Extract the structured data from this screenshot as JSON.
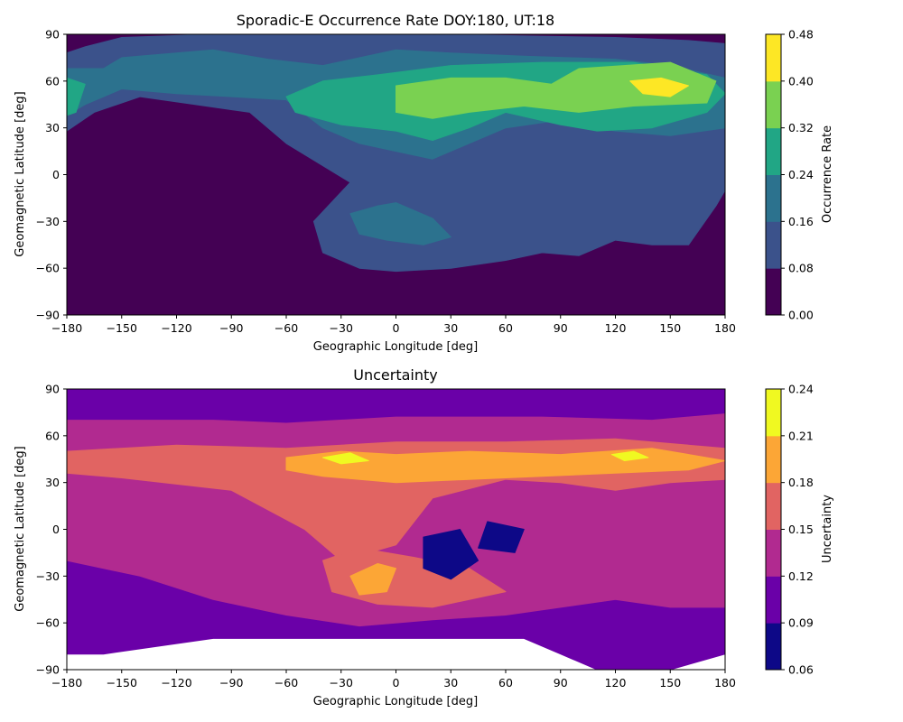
{
  "chart_data": [
    {
      "type": "heatmap",
      "subtype": "filled-contour",
      "title": "Sporadic-E Occurrence Rate  DOY:180, UT:18",
      "xlabel": "Geographic Longitude [deg]",
      "ylabel": "Geomagnetic Latitude [deg]",
      "xlim": [
        -180,
        180
      ],
      "ylim": [
        -90,
        90
      ],
      "xticks": [
        -180,
        -150,
        -120,
        -90,
        -60,
        -30,
        0,
        30,
        60,
        90,
        120,
        150,
        180
      ],
      "yticks": [
        -90,
        -60,
        -30,
        0,
        30,
        60,
        90
      ],
      "xtick_labels": [
        "−180",
        "−150",
        "−120",
        "−90",
        "−60",
        "−30",
        "0",
        "30",
        "60",
        "90",
        "120",
        "150",
        "180"
      ],
      "ytick_labels": [
        "−90",
        "−60",
        "−30",
        "0",
        "30",
        "60",
        "90"
      ],
      "colormap": "viridis",
      "colorbar": {
        "label": "Occurrence Rate",
        "levels": [
          0.0,
          0.08,
          0.16,
          0.24,
          0.32,
          0.4,
          0.48
        ],
        "tick_labels": [
          "0.00",
          "0.08",
          "0.16",
          "0.24",
          "0.32",
          "0.40",
          "0.48"
        ],
        "colors": [
          "#440154",
          "#3b528b",
          "#2c728e",
          "#21a685",
          "#7ad151",
          "#fde725"
        ]
      },
      "regions": [
        {
          "level_index": 1,
          "description": "0.08–0.16 band",
          "lon_lat": [
            [
              -180,
              78
            ],
            [
              -170,
              82
            ],
            [
              -150,
              88
            ],
            [
              -100,
              90
            ],
            [
              20,
              90
            ],
            [
              120,
              88
            ],
            [
              160,
              86
            ],
            [
              180,
              84
            ],
            [
              180,
              -10
            ],
            [
              175,
              -20
            ],
            [
              160,
              -45
            ],
            [
              140,
              -45
            ],
            [
              120,
              -42
            ],
            [
              100,
              -52
            ],
            [
              80,
              -50
            ],
            [
              60,
              -55
            ],
            [
              30,
              -60
            ],
            [
              0,
              -62
            ],
            [
              -20,
              -60
            ],
            [
              -40,
              -50
            ],
            [
              -45,
              -30
            ],
            [
              -25,
              -5
            ],
            [
              -60,
              20
            ],
            [
              -80,
              40
            ],
            [
              -110,
              45
            ],
            [
              -140,
              50
            ],
            [
              -165,
              40
            ],
            [
              -180,
              28
            ]
          ]
        },
        {
          "level_index": 2,
          "description": "0.16–0.24 band",
          "lon_lat": [
            [
              -180,
              68
            ],
            [
              -160,
              68
            ],
            [
              -150,
              75
            ],
            [
              -100,
              80
            ],
            [
              -70,
              74
            ],
            [
              -40,
              70
            ],
            [
              0,
              80
            ],
            [
              30,
              78
            ],
            [
              70,
              76
            ],
            [
              120,
              74
            ],
            [
              150,
              70
            ],
            [
              180,
              62
            ],
            [
              180,
              30
            ],
            [
              150,
              25
            ],
            [
              120,
              28
            ],
            [
              90,
              35
            ],
            [
              60,
              30
            ],
            [
              40,
              20
            ],
            [
              20,
              10
            ],
            [
              0,
              15
            ],
            [
              -20,
              20
            ],
            [
              -40,
              30
            ],
            [
              -60,
              48
            ],
            [
              -90,
              50
            ],
            [
              -120,
              52
            ],
            [
              -150,
              55
            ],
            [
              -170,
              45
            ],
            [
              -180,
              38
            ]
          ]
        },
        {
          "level_index": 2,
          "description": "0.16–0.24 southern patch",
          "lon_lat": [
            [
              -25,
              -25
            ],
            [
              -10,
              -20
            ],
            [
              0,
              -18
            ],
            [
              20,
              -28
            ],
            [
              30,
              -40
            ],
            [
              15,
              -45
            ],
            [
              -5,
              -42
            ],
            [
              -20,
              -38
            ]
          ]
        },
        {
          "level_index": 3,
          "description": "0.24–0.32 band",
          "lon_lat": [
            [
              -60,
              50
            ],
            [
              -40,
              60
            ],
            [
              -10,
              64
            ],
            [
              30,
              70
            ],
            [
              80,
              72
            ],
            [
              130,
              72
            ],
            [
              170,
              64
            ],
            [
              180,
              52
            ],
            [
              170,
              40
            ],
            [
              140,
              30
            ],
            [
              110,
              28
            ],
            [
              90,
              32
            ],
            [
              60,
              40
            ],
            [
              40,
              30
            ],
            [
              20,
              22
            ],
            [
              0,
              28
            ],
            [
              -30,
              32
            ],
            [
              -55,
              40
            ]
          ]
        },
        {
          "level_index": 3,
          "description": "0.24–0.32 western edge",
          "lon_lat": [
            [
              -180,
              62
            ],
            [
              -170,
              58
            ],
            [
              -175,
              40
            ],
            [
              -180,
              38
            ]
          ]
        },
        {
          "level_index": 4,
          "description": "0.32–0.40 region",
          "lon_lat": [
            [
              0,
              57
            ],
            [
              30,
              62
            ],
            [
              60,
              62
            ],
            [
              85,
              58
            ],
            [
              100,
              68
            ],
            [
              150,
              72
            ],
            [
              175,
              60
            ],
            [
              170,
              46
            ],
            [
              130,
              44
            ],
            [
              100,
              40
            ],
            [
              70,
              44
            ],
            [
              40,
              40
            ],
            [
              20,
              36
            ],
            [
              0,
              40
            ]
          ]
        },
        {
          "level_index": 5,
          "description": "0.40–0.48 peak",
          "lon_lat": [
            [
              128,
              60
            ],
            [
              145,
              62
            ],
            [
              160,
              57
            ],
            [
              150,
              50
            ],
            [
              135,
              52
            ]
          ]
        }
      ]
    },
    {
      "type": "heatmap",
      "subtype": "filled-contour",
      "title": "Uncertainty",
      "xlabel": "Geographic Longitude [deg]",
      "ylabel": "Geomagnetic Latitude [deg]",
      "xlim": [
        -180,
        180
      ],
      "ylim": [
        -90,
        90
      ],
      "xticks": [
        -180,
        -150,
        -120,
        -90,
        -60,
        -30,
        0,
        30,
        60,
        90,
        120,
        150,
        180
      ],
      "yticks": [
        -90,
        -60,
        -30,
        0,
        30,
        60,
        90
      ],
      "xtick_labels": [
        "−180",
        "−150",
        "−120",
        "−90",
        "−60",
        "−30",
        "0",
        "30",
        "60",
        "90",
        "120",
        "150",
        "180"
      ],
      "ytick_labels": [
        "−90",
        "−60",
        "−30",
        "0",
        "30",
        "60",
        "90"
      ],
      "colormap": "plasma",
      "colorbar": {
        "label": "Uncertainty",
        "levels": [
          0.06,
          0.09,
          0.12,
          0.15,
          0.18,
          0.21,
          0.24
        ],
        "tick_labels": [
          "0.06",
          "0.09",
          "0.12",
          "0.15",
          "0.18",
          "0.21",
          "0.24"
        ],
        "colors": [
          "#0d0887",
          "#6a00a8",
          "#b12a90",
          "#e16462",
          "#fca636",
          "#f0f921"
        ]
      },
      "regions": [
        {
          "level_index": 1,
          "description": "0.09–0.12 background",
          "lon_lat": [
            [
              -180,
              90
            ],
            [
              180,
              90
            ],
            [
              180,
              -80
            ],
            [
              150,
              -90
            ],
            [
              110,
              -90
            ],
            [
              90,
              -80
            ],
            [
              70,
              -70
            ],
            [
              -100,
              -70
            ],
            [
              -160,
              -80
            ],
            [
              -180,
              -80
            ]
          ]
        },
        {
          "level_index": 2,
          "description": "0.12–0.15 mid band",
          "lon_lat": [
            [
              -180,
              70
            ],
            [
              -100,
              70
            ],
            [
              -60,
              68
            ],
            [
              0,
              72
            ],
            [
              80,
              72
            ],
            [
              140,
              70
            ],
            [
              180,
              74
            ],
            [
              180,
              -50
            ],
            [
              150,
              -50
            ],
            [
              120,
              -45
            ],
            [
              90,
              -50
            ],
            [
              60,
              -55
            ],
            [
              20,
              -58
            ],
            [
              -20,
              -62
            ],
            [
              -60,
              -55
            ],
            [
              -100,
              -45
            ],
            [
              -140,
              -30
            ],
            [
              -180,
              -20
            ]
          ]
        },
        {
          "level_index": 3,
          "description": "0.15–0.18 band",
          "lon_lat": [
            [
              -180,
              50
            ],
            [
              -120,
              54
            ],
            [
              -60,
              52
            ],
            [
              0,
              56
            ],
            [
              60,
              56
            ],
            [
              120,
              58
            ],
            [
              180,
              52
            ],
            [
              180,
              32
            ],
            [
              150,
              30
            ],
            [
              120,
              25
            ],
            [
              90,
              30
            ],
            [
              60,
              32
            ],
            [
              20,
              20
            ],
            [
              0,
              -10
            ],
            [
              -30,
              -20
            ],
            [
              -50,
              0
            ],
            [
              -90,
              25
            ],
            [
              -150,
              33
            ],
            [
              -180,
              36
            ]
          ]
        },
        {
          "level_index": 3,
          "description": "0.15–0.18 southern patch",
          "lon_lat": [
            [
              -40,
              -20
            ],
            [
              -20,
              -12
            ],
            [
              10,
              -18
            ],
            [
              40,
              -25
            ],
            [
              60,
              -40
            ],
            [
              20,
              -50
            ],
            [
              -10,
              -48
            ],
            [
              -35,
              -40
            ]
          ]
        },
        {
          "level_index": 4,
          "description": "0.18–0.21 band",
          "lon_lat": [
            [
              -60,
              46
            ],
            [
              -30,
              50
            ],
            [
              0,
              48
            ],
            [
              40,
              50
            ],
            [
              90,
              48
            ],
            [
              140,
              52
            ],
            [
              180,
              44
            ],
            [
              160,
              38
            ],
            [
              120,
              36
            ],
            [
              80,
              34
            ],
            [
              40,
              32
            ],
            [
              0,
              30
            ],
            [
              -40,
              34
            ],
            [
              -60,
              38
            ]
          ]
        },
        {
          "level_index": 4,
          "description": "0.18–0.21 southern patch",
          "lon_lat": [
            [
              -25,
              -30
            ],
            [
              -10,
              -22
            ],
            [
              0,
              -25
            ],
            [
              -5,
              -40
            ],
            [
              -20,
              -42
            ]
          ]
        },
        {
          "level_index": 5,
          "description": "0.21–0.24 peak west",
          "lon_lat": [
            [
              -40,
              46
            ],
            [
              -25,
              49
            ],
            [
              -15,
              44
            ],
            [
              -30,
              42
            ]
          ]
        },
        {
          "level_index": 5,
          "description": "0.21–0.24 peak east",
          "lon_lat": [
            [
              118,
              48
            ],
            [
              130,
              50
            ],
            [
              138,
              46
            ],
            [
              125,
              44
            ]
          ]
        },
        {
          "level_index": 0,
          "description": "0.06–0.09 low region",
          "lon_lat": [
            [
              15,
              -5
            ],
            [
              35,
              0
            ],
            [
              45,
              -20
            ],
            [
              30,
              -32
            ],
            [
              15,
              -25
            ]
          ]
        },
        {
          "level_index": 0,
          "description": "0.06–0.09 low region east",
          "lon_lat": [
            [
              50,
              5
            ],
            [
              70,
              0
            ],
            [
              65,
              -15
            ],
            [
              45,
              -12
            ]
          ]
        }
      ]
    }
  ]
}
